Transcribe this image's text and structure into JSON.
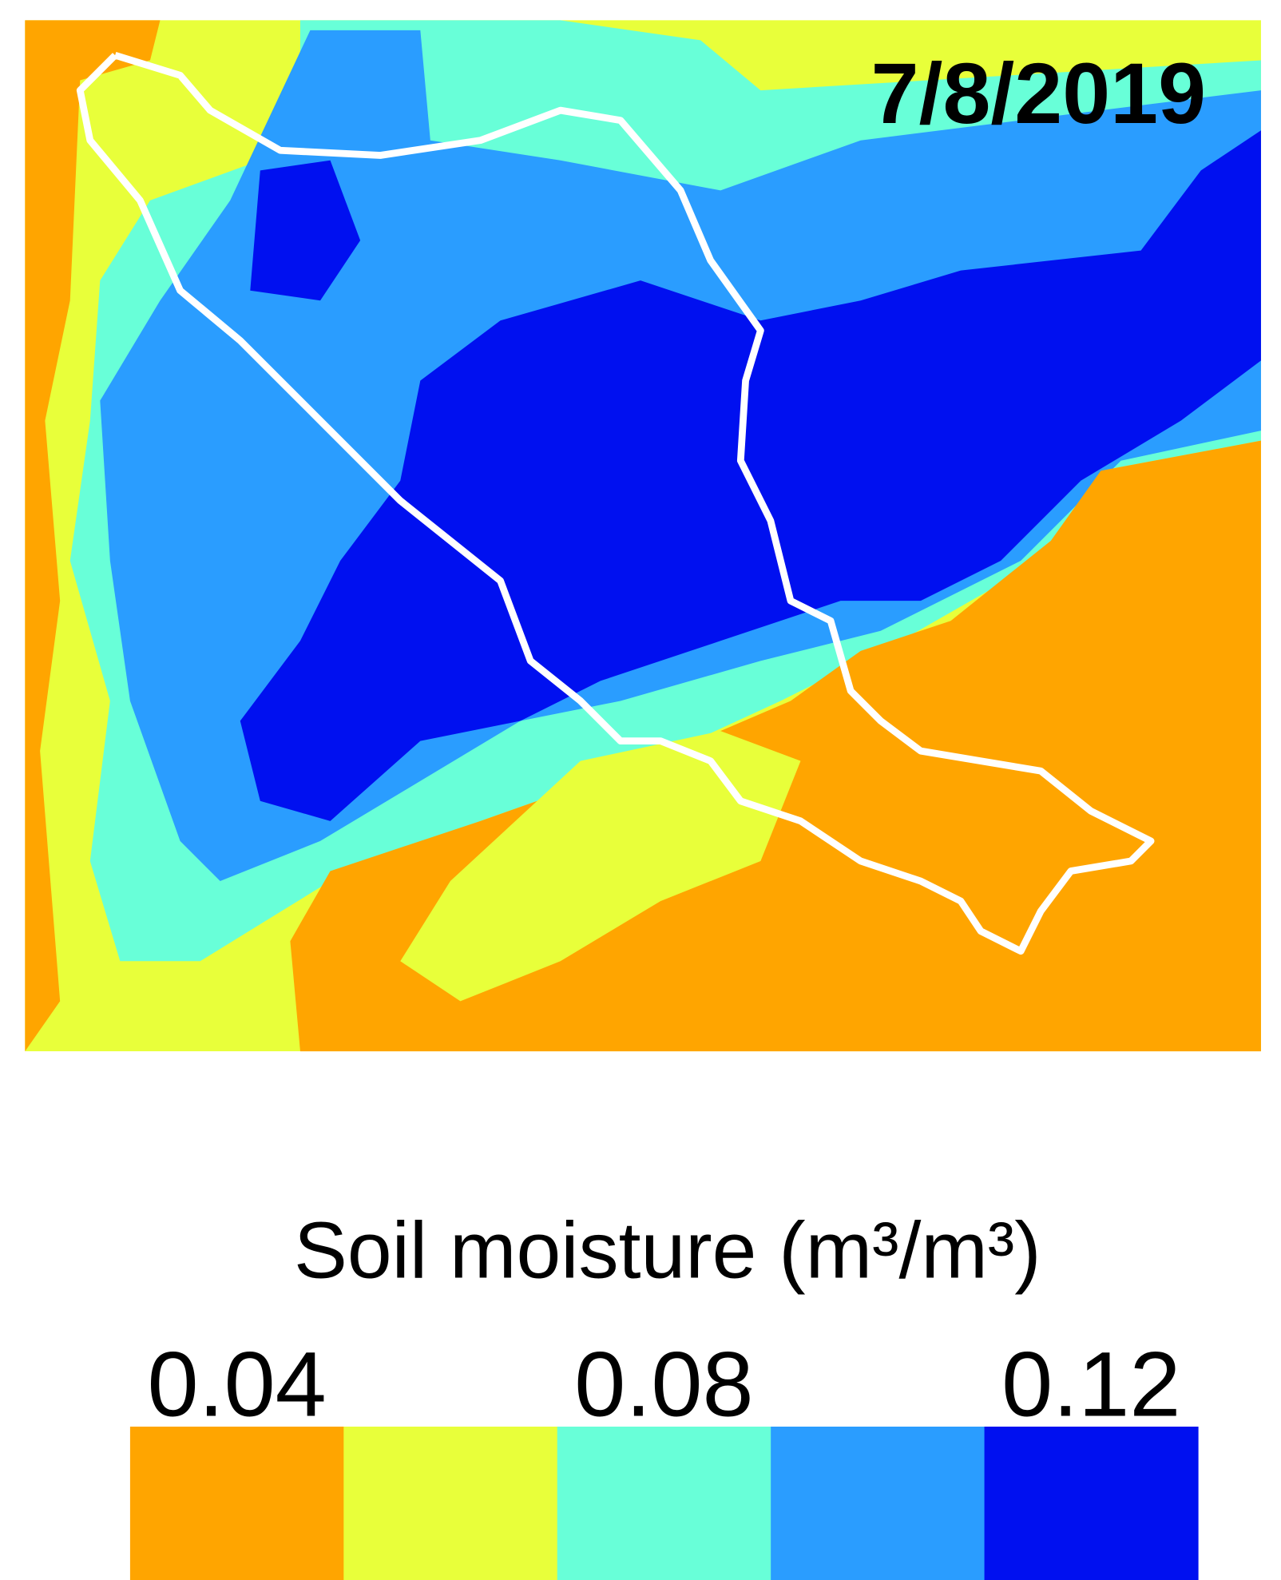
{
  "chart_data": {
    "type": "raster-map",
    "date": "7/8/2019",
    "legend_title": "Soil moisture (m³/m³)",
    "colors": [
      "#ffa500",
      "#e8ff3a",
      "#68ffd8",
      "#2a9dff",
      "#0010f0"
    ],
    "clim": [
      0.03,
      0.13
    ],
    "ticks": [
      0.04,
      0.08,
      0.12
    ]
  }
}
